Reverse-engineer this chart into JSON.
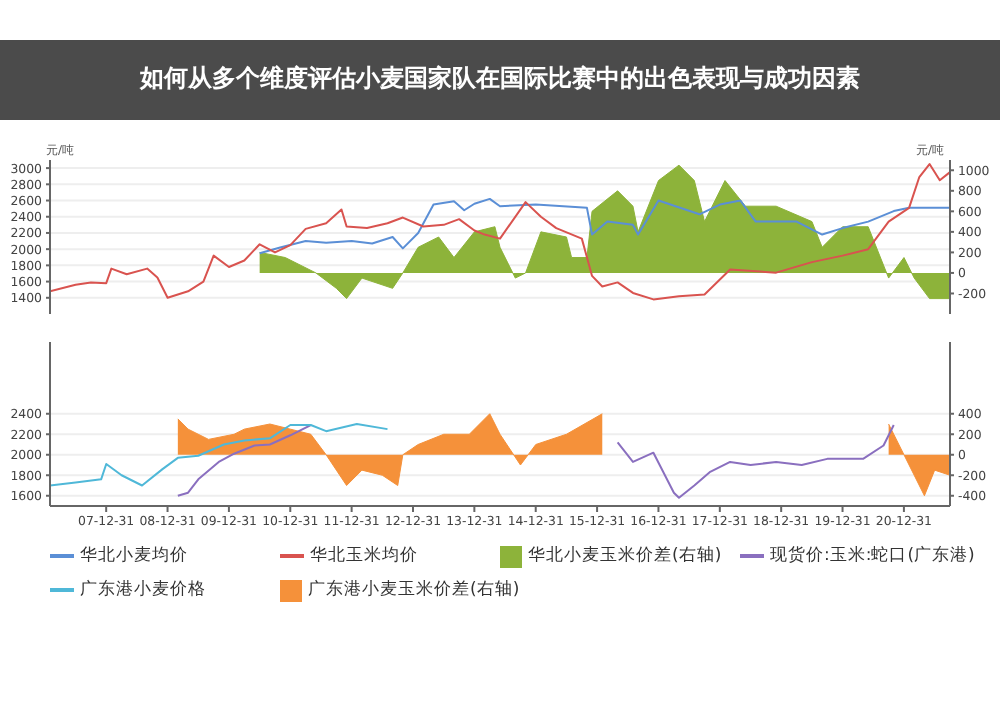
{
  "chart_data": [
    {
      "type": "line",
      "title": "如何从多个维度评估小麦国家队在国际比赛中的出色表现与成功因素",
      "ylabel": "元/吨",
      "y2label": "元/吨",
      "xlim": [
        "2007-02",
        "2021-10"
      ],
      "ylim": [
        1200,
        3100
      ],
      "yticks": [
        1400,
        1600,
        1800,
        2000,
        2200,
        2400,
        2600,
        2800,
        3000
      ],
      "y2lim": [
        -400,
        1100
      ],
      "y2ticks": [
        -200,
        0,
        200,
        400,
        600,
        800,
        1000
      ],
      "grid": "y",
      "tick_labels": "y",
      "legend": "bottom",
      "series": [
        {
          "name": "华北小麦均价",
          "color": "#5b8fd6",
          "x": [
            "2010-07",
            "2010-11",
            "2011-04",
            "2011-08",
            "2012-01",
            "2012-05",
            "2012-09",
            "2012-11",
            "2013-02",
            "2013-05",
            "2013-09",
            "2013-11",
            "2014-01",
            "2014-04",
            "2014-06",
            "2015-01",
            "2015-11",
            "2015-12",
            "2016-03",
            "2016-08",
            "2016-09",
            "2017-01",
            "2017-09",
            "2018-01",
            "2018-05",
            "2018-08",
            "2019-04",
            "2019-09",
            "2020-01",
            "2020-06",
            "2020-11",
            "2021-02",
            "2021-10"
          ],
          "values": [
            1950,
            2020,
            2100,
            2080,
            2100,
            2070,
            2150,
            2010,
            2200,
            2550,
            2590,
            2480,
            2560,
            2620,
            2530,
            2550,
            2510,
            2180,
            2340,
            2300,
            2180,
            2600,
            2430,
            2550,
            2600,
            2340,
            2340,
            2180,
            2260,
            2340,
            2470,
            2510,
            2510
          ]
        },
        {
          "name": "华北玉米均价",
          "color": "#d9534f",
          "x": [
            "2007-02",
            "2007-07",
            "2007-10",
            "2008-01",
            "2008-02",
            "2008-05",
            "2008-09",
            "2008-11",
            "2009-01",
            "2009-05",
            "2009-08",
            "2009-10",
            "2010-01",
            "2010-04",
            "2010-07",
            "2010-10",
            "2011-01",
            "2011-04",
            "2011-08",
            "2011-11",
            "2011-12",
            "2012-04",
            "2012-08",
            "2012-11",
            "2013-03",
            "2013-07",
            "2013-10",
            "2014-01",
            "2014-03",
            "2014-06",
            "2014-11",
            "2015-02",
            "2015-05",
            "2015-10",
            "2015-12",
            "2016-02",
            "2016-05",
            "2016-08",
            "2016-12",
            "2017-05",
            "2017-10",
            "2018-03",
            "2018-12",
            "2019-07",
            "2020-01",
            "2020-06",
            "2020-10",
            "2021-02",
            "2021-04",
            "2021-06",
            "2021-08",
            "2021-10"
          ],
          "values": [
            1480,
            1560,
            1590,
            1580,
            1760,
            1690,
            1760,
            1650,
            1400,
            1480,
            1600,
            1920,
            1780,
            1860,
            2060,
            1960,
            2050,
            2250,
            2320,
            2490,
            2280,
            2260,
            2320,
            2390,
            2280,
            2300,
            2370,
            2230,
            2180,
            2130,
            2580,
            2400,
            2260,
            2130,
            1670,
            1540,
            1590,
            1460,
            1380,
            1420,
            1440,
            1750,
            1710,
            1840,
            1920,
            2000,
            2340,
            2510,
            2890,
            3050,
            2850,
            2950
          ]
        },
        {
          "name": "华北小麦玉米价差(右轴)",
          "type": "area",
          "axis": "y2",
          "color": "#8db33a",
          "x": [
            "2010-07",
            "2010-12",
            "2011-06",
            "2011-10",
            "2011-12",
            "2012-03",
            "2012-09",
            "2012-11",
            "2013-02",
            "2013-06",
            "2013-09",
            "2014-01",
            "2014-05",
            "2014-06",
            "2014-09",
            "2014-11",
            "2015-02",
            "2015-07",
            "2015-08",
            "2015-11",
            "2015-12",
            "2016-05",
            "2016-08",
            "2016-09",
            "2017-01",
            "2017-05",
            "2017-08",
            "2017-10",
            "2018-02",
            "2018-06",
            "2018-12",
            "2019-07",
            "2019-09",
            "2020-01",
            "2020-06",
            "2020-10",
            "2021-01",
            "2021-03",
            "2021-06",
            "2021-10"
          ],
          "values": [
            200,
            150,
            0,
            -150,
            -250,
            -50,
            -150,
            0,
            250,
            350,
            150,
            400,
            450,
            250,
            -50,
            0,
            400,
            350,
            150,
            150,
            600,
            800,
            650,
            400,
            900,
            1050,
            900,
            500,
            900,
            650,
            650,
            500,
            250,
            450,
            450,
            -50,
            150,
            -50,
            -250,
            -250
          ]
        }
      ]
    },
    {
      "type": "line",
      "xlim": [
        "2007-02",
        "2021-10"
      ],
      "xticks": [
        {
          "value": "2007-12-31",
          "label": "07-12-31"
        },
        {
          "value": "2008-12-31",
          "label": "08-12-31"
        },
        {
          "value": "2009-12-31",
          "label": "09-12-31"
        },
        {
          "value": "2010-12-31",
          "label": "10-12-31"
        },
        {
          "value": "2011-12-31",
          "label": "11-12-31"
        },
        {
          "value": "2012-12-31",
          "label": "12-12-31"
        },
        {
          "value": "2013-12-31",
          "label": "13-12-31"
        },
        {
          "value": "2014-12-31",
          "label": "14-12-31"
        },
        {
          "value": "2015-12-31",
          "label": "15-12-31"
        },
        {
          "value": "2016-12-31",
          "label": "16-12-31"
        },
        {
          "value": "2017-12-31",
          "label": "17-12-31"
        },
        {
          "value": "2018-12-31",
          "label": "18-12-31"
        },
        {
          "value": "2019-12-31",
          "label": "19-12-31"
        },
        {
          "value": "2020-12-31",
          "label": "20-12-31"
        }
      ],
      "ylim": [
        1500,
        3100
      ],
      "yticks": [
        1600,
        1800,
        2000,
        2200,
        2400
      ],
      "y2lim": [
        -500,
        1100
      ],
      "y2ticks": [
        -400,
        -200,
        0,
        200,
        400
      ],
      "grid": "y",
      "legend": "bottom",
      "series": [
        {
          "name": "现货价:玉米:蛇口(广东港)",
          "color": "#8a6fbf",
          "x": [
            "2009-03",
            "2009-05",
            "2009-07",
            "2009-11",
            "2010-02",
            "2010-06",
            "2010-09",
            "2011-01",
            "2011-05",
            "2011-08",
            "2016-05",
            "2016-08",
            "2016-12",
            "2017-04",
            "2017-05",
            "2017-08",
            "2017-11",
            "2018-03",
            "2018-07",
            "2018-12",
            "2019-05",
            "2019-10",
            "2020-05",
            "2020-09",
            "2020-11"
          ],
          "values": [
            1600,
            1630,
            1760,
            1930,
            2010,
            2090,
            2100,
            2190,
            2290,
            null,
            2120,
            1930,
            2020,
            1630,
            1580,
            1700,
            1830,
            1930,
            1900,
            1930,
            1900,
            1960,
            1960,
            2090,
            2290
          ]
        },
        {
          "name": "广东港小麦价格",
          "color": "#4fb8d8",
          "x": [
            "2007-02",
            "2007-07",
            "2007-12",
            "2008-01",
            "2008-04",
            "2008-08",
            "2008-12",
            "2009-03",
            "2009-07",
            "2009-12",
            "2010-04",
            "2010-09",
            "2011-01",
            "2011-05",
            "2011-08",
            "2012-02",
            "2012-08"
          ],
          "values": [
            1700,
            1730,
            1760,
            1910,
            1800,
            1700,
            1860,
            1970,
            1990,
            2100,
            2140,
            2160,
            2290,
            2290,
            2230,
            2300,
            2250
          ]
        },
        {
          "name": "广东港小麦玉米价差(右轴)",
          "type": "area",
          "axis": "y2",
          "color": "#f5913a",
          "x": [
            "2009-03",
            "2009-05",
            "2009-09",
            "2010-02",
            "2010-04",
            "2010-09",
            "2011-01",
            "2011-05",
            "2011-08",
            "2011-10",
            "2011-12",
            "2012-03",
            "2012-07",
            "2012-10",
            "2012-11",
            "2013-02",
            "2013-07",
            "2013-12",
            "2014-04",
            "2014-06",
            "2014-10",
            "2015-01",
            "2015-07",
            "2016-02",
            "2016-04",
            "2020-10",
            "2021-01",
            "2021-03",
            "2021-05",
            "2021-07",
            "2021-10"
          ],
          "values": [
            350,
            250,
            150,
            200,
            250,
            300,
            250,
            200,
            0,
            -150,
            -300,
            -150,
            -200,
            -300,
            0,
            100,
            200,
            200,
            400,
            200,
            -100,
            100,
            200,
            400,
            null,
            300,
            0,
            -200,
            -400,
            -150,
            -200
          ]
        }
      ]
    }
  ]
}
